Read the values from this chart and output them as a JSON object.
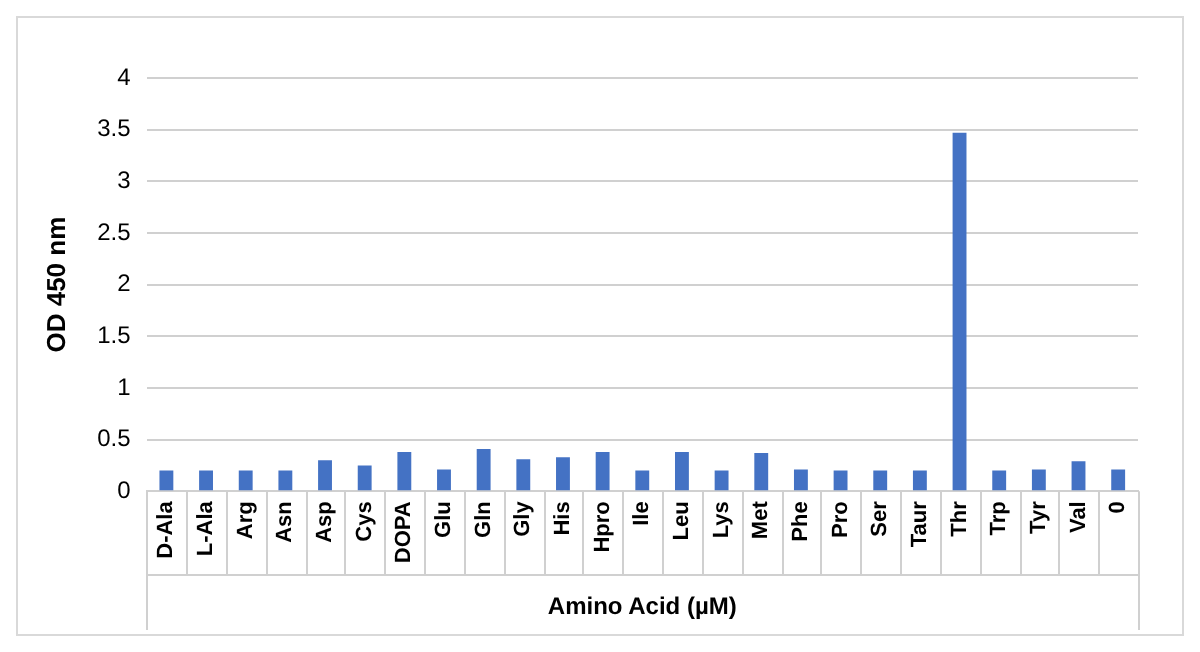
{
  "chart_data": {
    "type": "bar",
    "xlabel": "Amino Acid (µM)",
    "ylabel": "OD 450 nm",
    "categories": [
      "D-Ala",
      "L-Ala",
      "Arg",
      "Asn",
      "Asp",
      "Cys",
      "DOPA",
      "Glu",
      "Gln",
      "Gly",
      "His",
      "Hpro",
      "Ile",
      "Leu",
      "Lys",
      "Met",
      "Phe",
      "Pro",
      "Ser",
      "Taur",
      "Thr",
      "Trp",
      "Tyr",
      "Val",
      "0"
    ],
    "values": [
      0.2,
      0.2,
      0.2,
      0.2,
      0.3,
      0.25,
      0.38,
      0.21,
      0.41,
      0.31,
      0.33,
      0.38,
      0.2,
      0.38,
      0.2,
      0.37,
      0.21,
      0.2,
      0.2,
      0.2,
      3.47,
      0.2,
      0.21,
      0.29,
      0.21
    ],
    "color": "#4472c4",
    "ylim": [
      0,
      4
    ],
    "yticks": [
      0,
      0.5,
      1,
      1.5,
      2,
      2.5,
      3,
      3.5,
      4
    ],
    "grid": "y",
    "legend": false
  }
}
